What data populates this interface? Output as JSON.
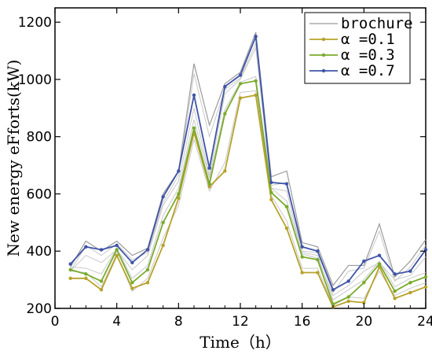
{
  "chart_data": {
    "type": "line",
    "xlabel": "Time（h）",
    "ylabel": "New energy eFforts(kW)",
    "xlim": [
      0,
      24
    ],
    "ylim": [
      200,
      1250
    ],
    "xticks": [
      0,
      4,
      8,
      12,
      16,
      20,
      24
    ],
    "yticks": [
      200,
      400,
      600,
      800,
      1000,
      1200
    ],
    "grid": false,
    "legend_position": "top-right",
    "x": [
      1,
      2,
      3,
      4,
      5,
      6,
      7,
      8,
      9,
      10,
      11,
      12,
      13,
      14,
      15,
      16,
      17,
      18,
      19,
      20,
      21,
      22,
      23,
      24
    ],
    "series": [
      {
        "name": "brochure",
        "color": "#9a9a9a",
        "marker": false,
        "values": [
          345,
          435,
          400,
          435,
          385,
          410,
          600,
          680,
          1055,
          840,
          985,
          1025,
          1165,
          660,
          680,
          430,
          415,
          280,
          350,
          350,
          495,
          310,
          365,
          440
        ]
      },
      {
        "name": "α =0.1",
        "color": "#b7a22a",
        "marker": true,
        "values": [
          305,
          305,
          265,
          385,
          270,
          290,
          420,
          585,
          815,
          625,
          680,
          935,
          945,
          580,
          480,
          325,
          325,
          205,
          225,
          220,
          345,
          235,
          255,
          275
        ]
      },
      {
        "name": "α =0.3",
        "color": "#7aab2c",
        "marker": true,
        "values": [
          335,
          320,
          295,
          405,
          290,
          335,
          500,
          600,
          830,
          635,
          880,
          985,
          995,
          605,
          555,
          380,
          370,
          215,
          240,
          290,
          355,
          260,
          290,
          310
        ]
      },
      {
        "name": "α =0.7",
        "color": "#3f54a8",
        "marker": true,
        "values": [
          355,
          415,
          405,
          420,
          360,
          405,
          590,
          680,
          945,
          690,
          975,
          1015,
          1150,
          640,
          635,
          415,
          400,
          265,
          295,
          365,
          385,
          320,
          330,
          405
        ]
      }
    ],
    "noise_lines": [
      [
        330,
        420,
        385,
        425,
        370,
        395,
        570,
        665,
        1020,
        800,
        965,
        1005,
        1125,
        630,
        640,
        400,
        395,
        255,
        330,
        340,
        470,
        295,
        345,
        420
      ],
      [
        330,
        325,
        275,
        390,
        260,
        305,
        445,
        560,
        790,
        610,
        710,
        955,
        960,
        595,
        505,
        340,
        340,
        210,
        240,
        235,
        330,
        245,
        270,
        290
      ],
      [
        345,
        340,
        320,
        410,
        305,
        350,
        525,
        620,
        860,
        655,
        895,
        990,
        1010,
        620,
        575,
        395,
        385,
        230,
        265,
        300,
        365,
        275,
        305,
        325
      ],
      [
        330,
        385,
        360,
        405,
        335,
        385,
        560,
        645,
        900,
        665,
        950,
        1000,
        1110,
        620,
        610,
        390,
        375,
        245,
        280,
        330,
        360,
        300,
        315,
        380
      ]
    ]
  }
}
